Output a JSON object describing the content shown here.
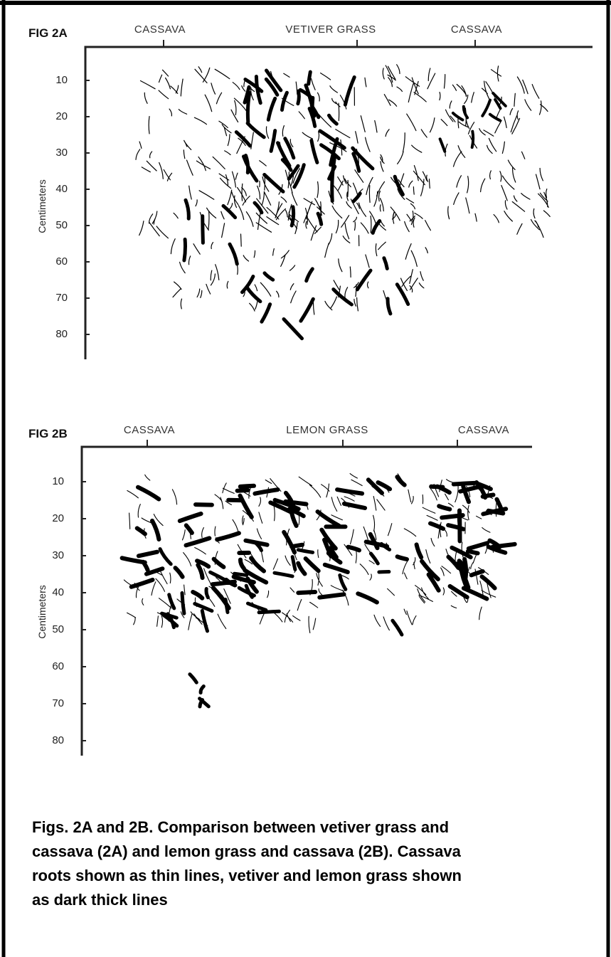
{
  "figures": [
    {
      "label": "FIG 2A",
      "columns": [
        "CASSAVA",
        "VETIVER GRASS",
        "CASSAVA"
      ],
      "depth_ticks": [
        10,
        20,
        30,
        40,
        50,
        60,
        70,
        80
      ],
      "axis_label": "Centimeters"
    },
    {
      "label": "FIG 2B",
      "columns": [
        "CASSAVA",
        "LEMON GRASS",
        "CASSAVA"
      ],
      "depth_ticks": [
        10,
        20,
        30,
        40,
        50,
        60,
        70,
        80
      ],
      "axis_label": "Centimeters"
    }
  ],
  "caption": [
    "Figs. 2A and 2B.  Comparison between vetiver grass and",
    "cassava (2A) and lemon grass and cassava (2B). Cassava",
    "roots shown as thin lines, vetiver and lemon grass shown",
    "as dark thick lines"
  ]
}
